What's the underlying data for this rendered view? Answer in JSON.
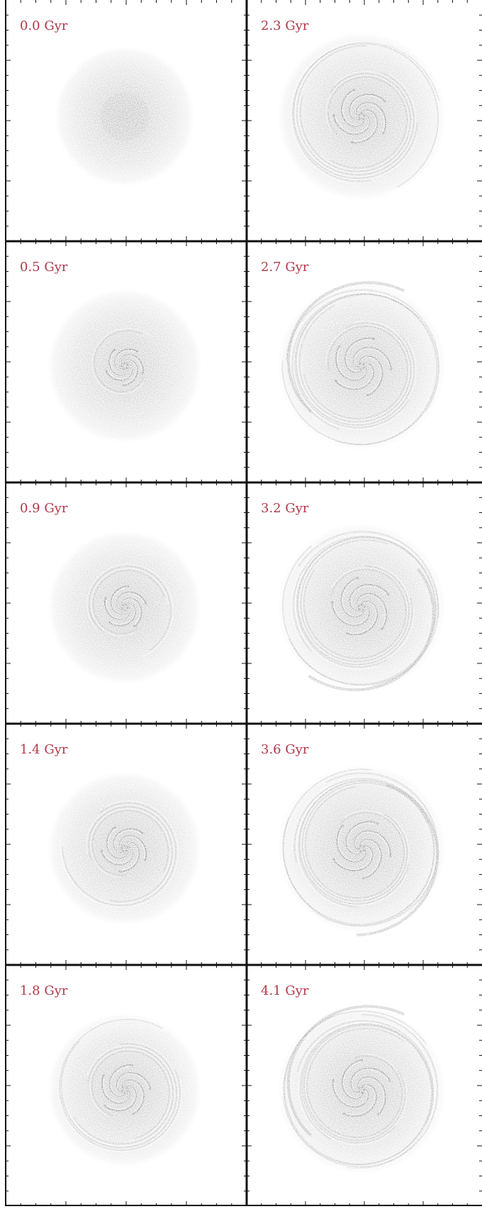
{
  "figure": {
    "columns": 2,
    "rows": 5,
    "panels": [
      {
        "label": "0.0 Gyr",
        "stage": 0
      },
      {
        "label": "2.3 Gyr",
        "stage": 5
      },
      {
        "label": "0.5 Gyr",
        "stage": 1
      },
      {
        "label": "2.7 Gyr",
        "stage": 6
      },
      {
        "label": "0.9 Gyr",
        "stage": 2
      },
      {
        "label": "3.2 Gyr",
        "stage": 7
      },
      {
        "label": "1.4 Gyr",
        "stage": 3
      },
      {
        "label": "3.6 Gyr",
        "stage": 8
      },
      {
        "label": "1.8 Gyr",
        "stage": 4
      },
      {
        "label": "4.1 Gyr",
        "stage": 9
      }
    ],
    "colors": {
      "label": "#b2384a",
      "frame": "#111111",
      "galaxy": "#7a7a7a",
      "background": "#ffffff"
    }
  }
}
